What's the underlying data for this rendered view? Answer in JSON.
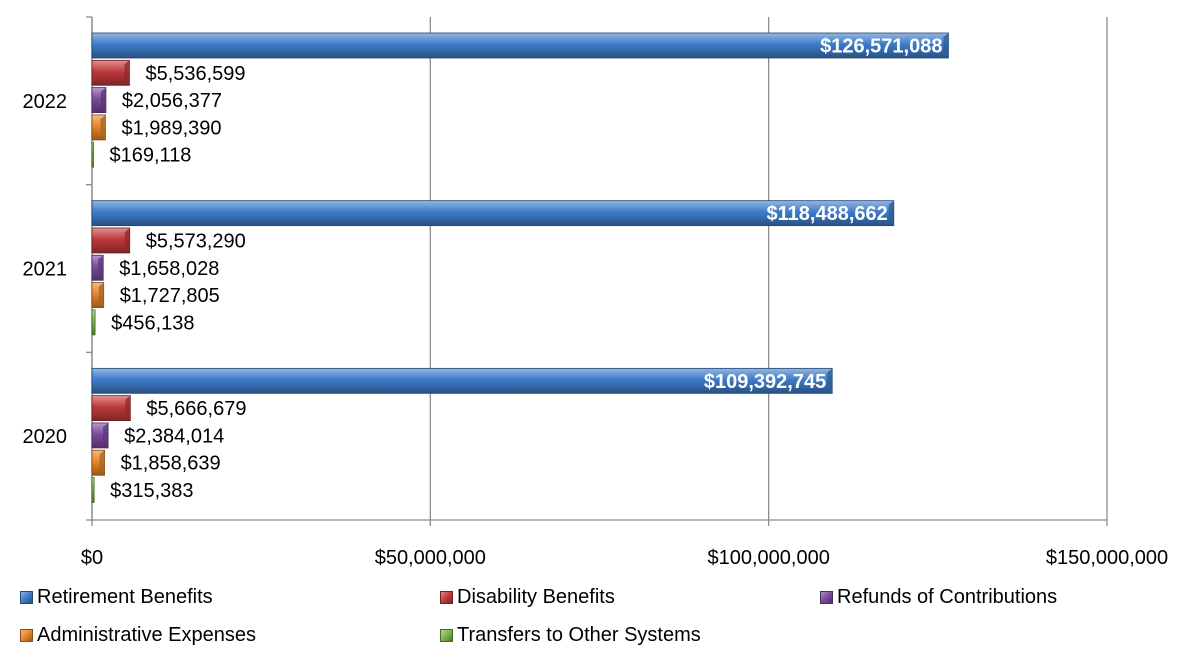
{
  "chart_data": {
    "type": "bar",
    "orientation": "horizontal",
    "categories": [
      "2022",
      "2021",
      "2020"
    ],
    "series": [
      {
        "name": "Retirement Benefits",
        "color": "#3d7cc9",
        "values": [
          126571088,
          118488662,
          109392745
        ],
        "labels": [
          "$126,571,088",
          "$118,488,662",
          "$109,392,745"
        ]
      },
      {
        "name": "Disability Benefits",
        "color": "#c0393b",
        "values": [
          5536599,
          5573290,
          5666679
        ],
        "labels": [
          "$5,536,599",
          "$5,573,290",
          "$5,666,679"
        ]
      },
      {
        "name": "Refunds of Contributions",
        "color": "#7b4a9e",
        "values": [
          2056377,
          1658028,
          2384014
        ],
        "labels": [
          "$2,056,377",
          "$1,658,028",
          "$2,384,014"
        ]
      },
      {
        "name": "Administrative Expenses",
        "color": "#e8862a",
        "values": [
          1989390,
          1727805,
          1858639
        ],
        "labels": [
          "$1,989,390",
          "$1,727,805",
          "$1,858,639"
        ]
      },
      {
        "name": "Transfers to Other Systems",
        "color": "#7ab648",
        "values": [
          169118,
          456138,
          315383
        ],
        "labels": [
          "$169,118",
          "$456,138",
          "$315,383"
        ]
      }
    ],
    "x_ticks": [
      "$0",
      "$50,000,000",
      "$100,000,000",
      "$150,000,000"
    ],
    "xlim": [
      0,
      150000000
    ],
    "grid": true,
    "legend_position": "bottom"
  }
}
